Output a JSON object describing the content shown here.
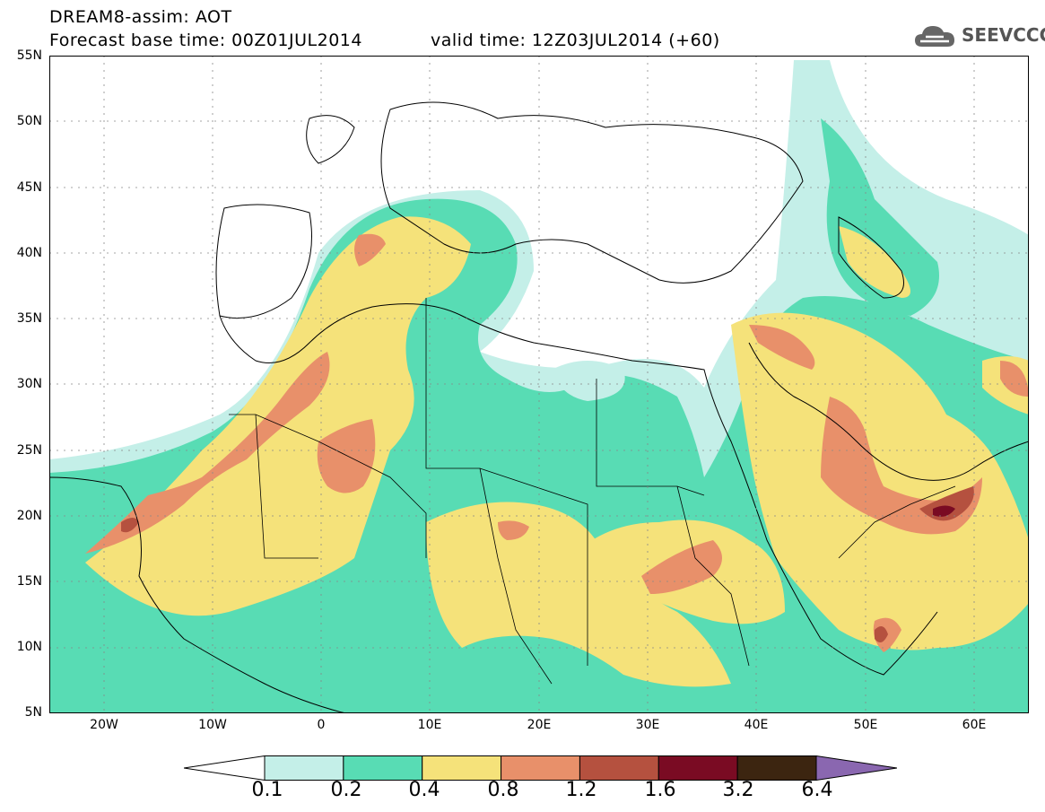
{
  "header": {
    "line1": "DREAM8-assim: AOT",
    "base_time": "Forecast base time: 00Z01JUL2014",
    "valid_time": "valid time: 12Z03JUL2014 (+60)"
  },
  "logo": {
    "text": "SEEVCCC",
    "icon": "cloud-icon"
  },
  "axes": {
    "y_labels": [
      "55N",
      "50N",
      "45N",
      "40N",
      "35N",
      "30N",
      "25N",
      "20N",
      "15N",
      "10N",
      "5N"
    ],
    "x_labels": [
      "20W",
      "10W",
      "0",
      "10E",
      "20E",
      "30E",
      "40E",
      "50E",
      "60E"
    ],
    "lon_range": [
      -25,
      65
    ],
    "lat_range": [
      5,
      55
    ]
  },
  "colorbar": {
    "labels": [
      "0.1",
      "0.2",
      "0.4",
      "0.8",
      "1.2",
      "1.6",
      "3.2",
      "6.4"
    ],
    "colors": [
      "#ffffff",
      "#c4efe8",
      "#58dcb4",
      "#f5e27a",
      "#e8906a",
      "#b5513f",
      "#7a0b23",
      "#3c2510",
      "#8a67b0"
    ]
  }
}
